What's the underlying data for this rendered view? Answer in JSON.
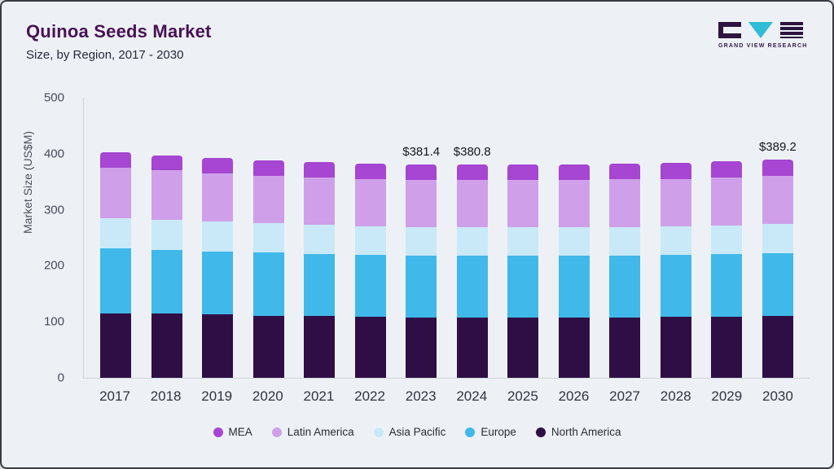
{
  "header": {
    "title": "Quinoa Seeds Market",
    "subtitle": "Size, by Region, 2017 - 2030"
  },
  "logo": {
    "text": "GRAND VIEW RESEARCH",
    "accent_color": "#2fbcd6",
    "mark_color": "#2e1440"
  },
  "chart_data": {
    "type": "bar",
    "stacked": true,
    "title": "Quinoa Seeds Market",
    "subtitle": "Size, by Region, 2017 - 2030",
    "xlabel": "",
    "ylabel": "Market Size (US$M)",
    "ylim": [
      0,
      500
    ],
    "yticks": [
      0,
      100,
      200,
      300,
      400,
      500
    ],
    "grid": false,
    "legend_position": "bottom",
    "categories": [
      "2017",
      "2018",
      "2019",
      "2020",
      "2021",
      "2022",
      "2023",
      "2024",
      "2025",
      "2026",
      "2027",
      "2028",
      "2029",
      "2030"
    ],
    "series": [
      {
        "name": "North America",
        "color": "#2f0e45",
        "values": [
          115.5,
          114.5,
          112.8,
          111.2,
          110.0,
          109.0,
          108.2,
          107.9,
          107.9,
          108.0,
          108.3,
          108.8,
          109.4,
          110.3
        ]
      },
      {
        "name": "Europe",
        "color": "#41b8ea",
        "values": [
          115.0,
          114.0,
          113.2,
          112.1,
          111.0,
          110.3,
          109.7,
          109.6,
          109.6,
          109.7,
          109.9,
          110.3,
          110.9,
          111.8
        ]
      },
      {
        "name": "Asia Pacific",
        "color": "#c9e9f8",
        "values": [
          54.5,
          53.5,
          52.8,
          52.2,
          51.7,
          51.5,
          51.3,
          51.2,
          51.2,
          51.3,
          51.4,
          51.6,
          51.9,
          52.4
        ]
      },
      {
        "name": "Latin America",
        "color": "#cfa0e9",
        "values": [
          89.5,
          88.0,
          86.7,
          85.0,
          84.6,
          84.4,
          84.3,
          84.2,
          84.2,
          84.2,
          84.4,
          84.7,
          85.3,
          85.9
        ]
      },
      {
        "name": "MEA",
        "color": "#a646d2",
        "values": [
          27.5,
          27.5,
          27.5,
          27.5,
          27.7,
          27.8,
          27.9,
          27.9,
          28.0,
          28.0,
          28.0,
          28.1,
          28.5,
          28.8
        ]
      }
    ],
    "legend_order": [
      "MEA",
      "Latin America",
      "Asia Pacific",
      "Europe",
      "North America"
    ],
    "annotations": [
      {
        "category": "2023",
        "label": "$381.4"
      },
      {
        "category": "2024",
        "label": "$380.8"
      },
      {
        "category": "2030",
        "label": "$389.2"
      }
    ]
  }
}
